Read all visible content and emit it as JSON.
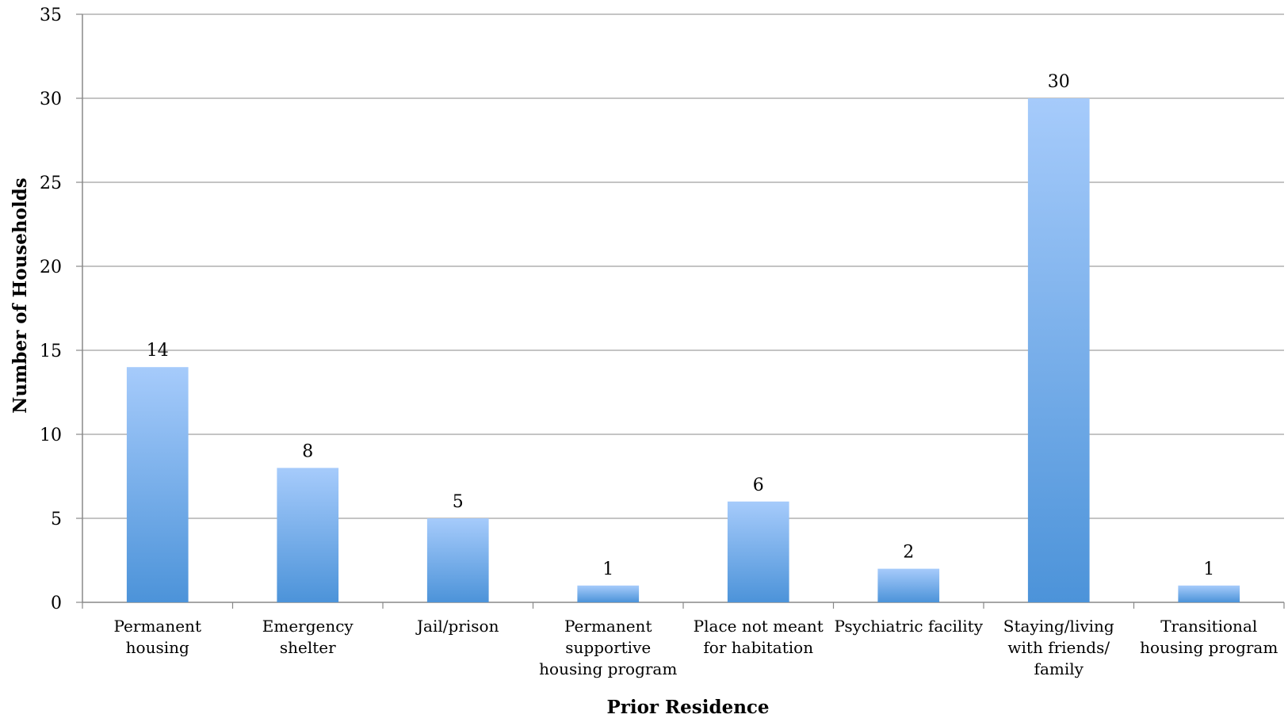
{
  "chart_data": {
    "type": "bar",
    "title": "",
    "xlabel": "Prior Residence",
    "ylabel": "Number of Households",
    "ylim": [
      0,
      35
    ],
    "yticks": [
      0,
      5,
      10,
      15,
      20,
      25,
      30,
      35
    ],
    "grid": true,
    "legend": "none",
    "categories": [
      [
        "Permanent",
        "housing"
      ],
      [
        "Emergency",
        "shelter"
      ],
      [
        "Jail/prison"
      ],
      [
        "Permanent",
        "supportive",
        "housing program"
      ],
      [
        "Place not meant",
        "for habitation"
      ],
      [
        "Psychiatric facility"
      ],
      [
        "Staying/living",
        "with friends/",
        "family"
      ],
      [
        "Transitional",
        "housing program"
      ]
    ],
    "values": [
      14,
      8,
      5,
      1,
      6,
      2,
      30,
      1
    ],
    "colors": {
      "bar_top": "#a6cbfb",
      "bar_bottom": "#4c93d9",
      "grid": "#a0a0a0",
      "axis": "#888888"
    }
  }
}
